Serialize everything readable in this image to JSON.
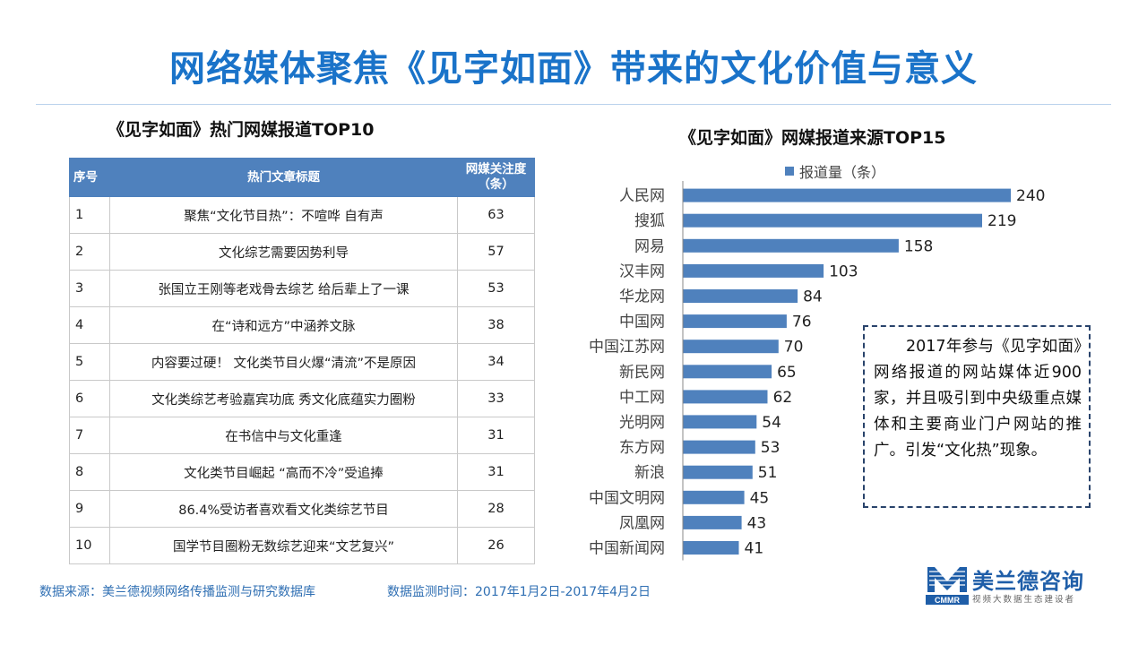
{
  "page": {
    "title": "网络媒体聚焦《见字如面》带来的文化价值与意义"
  },
  "table": {
    "title": "《见字如面》热门网媒报道TOP10",
    "headers": {
      "num": "序号",
      "title": "热门文章标题",
      "value": "网媒关注度（条）"
    },
    "rows": [
      {
        "num": "1",
        "title": "聚焦“文化节目热”：不喧哗 自有声",
        "value": "63"
      },
      {
        "num": "2",
        "title": "文化综艺需要因势利导",
        "value": "57"
      },
      {
        "num": "3",
        "title": "张国立王刚等老戏骨去综艺 给后辈上了一课",
        "value": "53"
      },
      {
        "num": "4",
        "title": "在“诗和远方”中涵养文脉",
        "value": "38"
      },
      {
        "num": "5",
        "title": "内容要过硬！ 文化类节目火爆“清流”不是原因",
        "value": "34"
      },
      {
        "num": "6",
        "title": "文化类综艺考验嘉宾功底 秀文化底蕴实力圈粉",
        "value": "33"
      },
      {
        "num": "7",
        "title": "在书信中与文化重逢",
        "value": "31"
      },
      {
        "num": "8",
        "title": "文化类节目崛起 “高而不冷”受追捧",
        "value": "31"
      },
      {
        "num": "9",
        "title": "86.4%受访者喜欢看文化类综艺节目",
        "value": "28"
      },
      {
        "num": "10",
        "title": "国学节目圈粉无数综艺迎来“文艺复兴”",
        "value": "26"
      }
    ]
  },
  "chart_data": {
    "type": "bar",
    "orientation": "horizontal",
    "title": "《见字如面》网媒报道来源TOP15",
    "legend_position": "top",
    "series": [
      {
        "name": "报道量（条）",
        "color": "#4f81bd",
        "values": [
          240,
          219,
          158,
          103,
          84,
          76,
          70,
          65,
          62,
          54,
          53,
          51,
          45,
          43,
          41
        ]
      }
    ],
    "categories": [
      "人民网",
      "搜狐",
      "网易",
      "汉丰网",
      "华龙网",
      "中国网",
      "中国江苏网",
      "新民网",
      "中工网",
      "光明网",
      "东方网",
      "新浪",
      "中国文明网",
      "凤凰网",
      "中国新闻网"
    ],
    "xlim": [
      0,
      260
    ],
    "grid": false
  },
  "note": {
    "text": "2017年参与《见字如面》网络报道的网站媒体近900家，并且吸引到中央级重点媒体和主要商业门户网站的推广。引发“文化热”现象。"
  },
  "footer": {
    "source": "数据来源：美兰德视频网络传播监测与研究数据库",
    "period": "数据监测时间：2017年1月2日-2017年4月2日"
  },
  "logo": {
    "mark_letter": "M",
    "mark_sub": "CMMR",
    "name": "美兰德咨询",
    "tagline": "视频大数据生态建设者"
  },
  "colors": {
    "accent": "#1a73c9",
    "bar": "#4f81bd",
    "header": "#4f81bd"
  }
}
